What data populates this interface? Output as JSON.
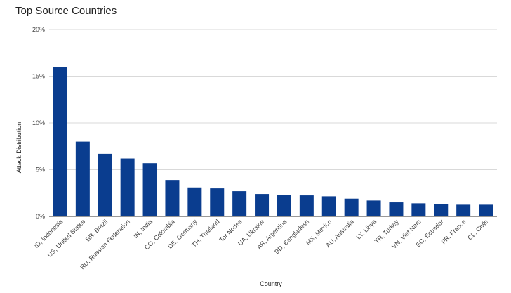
{
  "chart_data": {
    "type": "bar",
    "title": "Top Source Countries",
    "xlabel": "Country",
    "ylabel": "Attack Distribution",
    "ylim": [
      0,
      20
    ],
    "yticks": [
      "0%",
      "5%",
      "10%",
      "15%",
      "20%"
    ],
    "grid": true,
    "bar_color": "#0a3d8f",
    "categories": [
      "ID, Indonesia",
      "US, United States",
      "BR, Brazil",
      "RU, Russian Federation",
      "IN, India",
      "CO, Colombia",
      "DE, Germany",
      "TH, Thailand",
      "Tor Nodes",
      "UA, Ukraine",
      "AR, Argentina",
      "BD, Bangladesh",
      "MX, Mexico",
      "AU, Australia",
      "LY, Libya",
      "TR, Turkey",
      "VN, Viet Nam",
      "EC, Ecuador",
      "FR, France",
      "CL, Chile"
    ],
    "values": [
      16.0,
      8.0,
      6.7,
      6.2,
      5.7,
      3.9,
      3.1,
      3.0,
      2.7,
      2.4,
      2.3,
      2.25,
      2.15,
      1.9,
      1.7,
      1.5,
      1.4,
      1.3,
      1.25,
      1.25
    ]
  }
}
